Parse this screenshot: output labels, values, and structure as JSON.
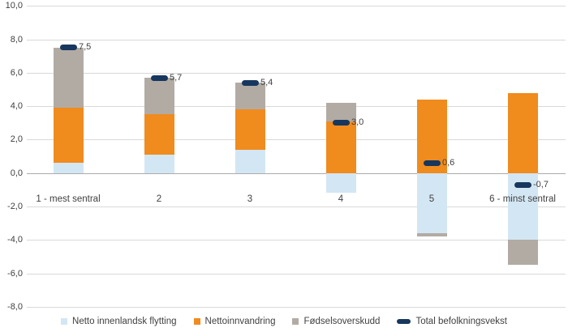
{
  "chart_data": {
    "type": "bar",
    "stacked": true,
    "title": "",
    "categories": [
      "1 - mest sentral",
      "2",
      "3",
      "4",
      "5",
      "6 - minst sentral"
    ],
    "series": [
      {
        "name": "Netto innenlandsk flytting",
        "color": "#d3e6f3",
        "values": [
          0.6,
          1.1,
          1.4,
          -1.2,
          -3.6,
          -4.0
        ]
      },
      {
        "name": "Nettoinnvandring",
        "color": "#f08b1e",
        "values": [
          3.3,
          2.4,
          2.4,
          3.1,
          4.4,
          4.8
        ]
      },
      {
        "name": "Fødselsoverskudd",
        "color": "#b2aba4",
        "values": [
          3.6,
          2.2,
          1.6,
          1.1,
          -0.2,
          -1.5
        ]
      }
    ],
    "total_series": {
      "name": "Total befolkningsvekst",
      "color": "#17375e",
      "values": [
        7.5,
        5.7,
        5.4,
        3.0,
        0.6,
        -0.7
      ],
      "labels": [
        "7,5",
        "5,7",
        "5,4",
        "3,0",
        "0,6",
        "-0,7"
      ]
    },
    "y_axis": {
      "tick_labels": [
        "10,0",
        "8,0",
        "6,0",
        "4,0",
        "2,0",
        "0,0",
        "-2,0",
        "-4,0",
        "-6,0",
        "-8,0"
      ],
      "tick_values": [
        10,
        8,
        6,
        4,
        2,
        0,
        -2,
        -4,
        -6,
        -8
      ],
      "ylim": [
        -8,
        10
      ]
    },
    "grid": true,
    "legend_position": "bottom"
  },
  "colors": {
    "background": "#ffffff",
    "gridline": "#d9d9d9",
    "zero_line": "#ababab",
    "axis_text": "#404040",
    "data_label_text": "#404040"
  }
}
